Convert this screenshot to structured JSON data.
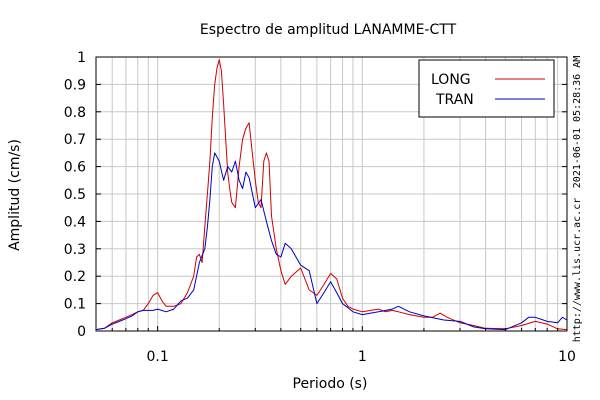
{
  "chart_data": {
    "type": "line",
    "title": "Espectro de amplitud LANAMME-CTT",
    "xlabel": "Periodo (s)",
    "ylabel": "Amplitud (cm/s)",
    "x_scale": "log",
    "xlim": [
      0.05,
      10
    ],
    "ylim": [
      0,
      1
    ],
    "x_ticks": [
      0.1,
      1,
      10
    ],
    "x_tick_labels": [
      "0.1",
      "1",
      "10"
    ],
    "y_ticks": [
      0,
      0.1,
      0.2,
      0.3,
      0.4,
      0.5,
      0.6,
      0.7,
      0.8,
      0.9,
      1
    ],
    "y_tick_labels": [
      "0",
      "0.1",
      "0.2",
      "0.3",
      "0.4",
      "0.5",
      "0.6",
      "0.7",
      "0.8",
      "0.9",
      "1"
    ],
    "grid": true,
    "legend_position": "top-right",
    "side_annotations": [
      "2021-06-01 05:28:36 AM",
      "http://www.lis.ucr.ac.cr"
    ],
    "series": [
      {
        "name": "LONG",
        "color": "#d00000",
        "points": [
          [
            0.05,
            0.005
          ],
          [
            0.055,
            0.01
          ],
          [
            0.06,
            0.03
          ],
          [
            0.065,
            0.04
          ],
          [
            0.07,
            0.05
          ],
          [
            0.075,
            0.06
          ],
          [
            0.08,
            0.07
          ],
          [
            0.085,
            0.075
          ],
          [
            0.09,
            0.1
          ],
          [
            0.095,
            0.13
          ],
          [
            0.1,
            0.14
          ],
          [
            0.105,
            0.11
          ],
          [
            0.11,
            0.09
          ],
          [
            0.12,
            0.09
          ],
          [
            0.13,
            0.1
          ],
          [
            0.14,
            0.14
          ],
          [
            0.15,
            0.2
          ],
          [
            0.155,
            0.27
          ],
          [
            0.16,
            0.28
          ],
          [
            0.165,
            0.25
          ],
          [
            0.17,
            0.38
          ],
          [
            0.175,
            0.5
          ],
          [
            0.18,
            0.62
          ],
          [
            0.185,
            0.78
          ],
          [
            0.19,
            0.9
          ],
          [
            0.195,
            0.96
          ],
          [
            0.2,
            0.99
          ],
          [
            0.205,
            0.95
          ],
          [
            0.21,
            0.83
          ],
          [
            0.215,
            0.7
          ],
          [
            0.22,
            0.58
          ],
          [
            0.225,
            0.52
          ],
          [
            0.23,
            0.47
          ],
          [
            0.24,
            0.45
          ],
          [
            0.25,
            0.6
          ],
          [
            0.26,
            0.7
          ],
          [
            0.27,
            0.74
          ],
          [
            0.28,
            0.76
          ],
          [
            0.29,
            0.65
          ],
          [
            0.3,
            0.55
          ],
          [
            0.31,
            0.47
          ],
          [
            0.32,
            0.45
          ],
          [
            0.33,
            0.62
          ],
          [
            0.34,
            0.65
          ],
          [
            0.35,
            0.62
          ],
          [
            0.36,
            0.42
          ],
          [
            0.38,
            0.3
          ],
          [
            0.4,
            0.22
          ],
          [
            0.42,
            0.17
          ],
          [
            0.45,
            0.2
          ],
          [
            0.5,
            0.23
          ],
          [
            0.55,
            0.15
          ],
          [
            0.6,
            0.13
          ],
          [
            0.65,
            0.17
          ],
          [
            0.7,
            0.21
          ],
          [
            0.75,
            0.19
          ],
          [
            0.8,
            0.12
          ],
          [
            0.85,
            0.09
          ],
          [
            0.9,
            0.08
          ],
          [
            1.0,
            0.07
          ],
          [
            1.1,
            0.075
          ],
          [
            1.2,
            0.08
          ],
          [
            1.3,
            0.07
          ],
          [
            1.4,
            0.075
          ],
          [
            1.5,
            0.07
          ],
          [
            1.7,
            0.06
          ],
          [
            2.0,
            0.05
          ],
          [
            2.2,
            0.05
          ],
          [
            2.4,
            0.065
          ],
          [
            2.6,
            0.05
          ],
          [
            3.0,
            0.03
          ],
          [
            3.5,
            0.02
          ],
          [
            4.0,
            0.01
          ],
          [
            5.0,
            0.008
          ],
          [
            6.0,
            0.02
          ],
          [
            7.0,
            0.035
          ],
          [
            8.0,
            0.025
          ],
          [
            9.0,
            0.008
          ],
          [
            10.0,
            0.005
          ]
        ]
      },
      {
        "name": "TRAN",
        "color": "#0000c0",
        "points": [
          [
            0.05,
            0.005
          ],
          [
            0.055,
            0.01
          ],
          [
            0.06,
            0.025
          ],
          [
            0.065,
            0.035
          ],
          [
            0.07,
            0.045
          ],
          [
            0.075,
            0.055
          ],
          [
            0.08,
            0.07
          ],
          [
            0.085,
            0.075
          ],
          [
            0.09,
            0.075
          ],
          [
            0.095,
            0.075
          ],
          [
            0.1,
            0.08
          ],
          [
            0.11,
            0.07
          ],
          [
            0.12,
            0.08
          ],
          [
            0.13,
            0.11
          ],
          [
            0.14,
            0.12
          ],
          [
            0.15,
            0.15
          ],
          [
            0.16,
            0.25
          ],
          [
            0.17,
            0.3
          ],
          [
            0.175,
            0.38
          ],
          [
            0.18,
            0.48
          ],
          [
            0.185,
            0.6
          ],
          [
            0.19,
            0.65
          ],
          [
            0.2,
            0.62
          ],
          [
            0.21,
            0.55
          ],
          [
            0.22,
            0.6
          ],
          [
            0.23,
            0.58
          ],
          [
            0.24,
            0.62
          ],
          [
            0.25,
            0.55
          ],
          [
            0.26,
            0.52
          ],
          [
            0.27,
            0.58
          ],
          [
            0.28,
            0.56
          ],
          [
            0.3,
            0.45
          ],
          [
            0.32,
            0.48
          ],
          [
            0.34,
            0.4
          ],
          [
            0.36,
            0.33
          ],
          [
            0.38,
            0.28
          ],
          [
            0.4,
            0.27
          ],
          [
            0.42,
            0.32
          ],
          [
            0.45,
            0.3
          ],
          [
            0.5,
            0.24
          ],
          [
            0.55,
            0.22
          ],
          [
            0.6,
            0.1
          ],
          [
            0.65,
            0.14
          ],
          [
            0.7,
            0.18
          ],
          [
            0.75,
            0.14
          ],
          [
            0.8,
            0.1
          ],
          [
            0.85,
            0.085
          ],
          [
            0.9,
            0.07
          ],
          [
            1.0,
            0.06
          ],
          [
            1.2,
            0.07
          ],
          [
            1.4,
            0.08
          ],
          [
            1.5,
            0.09
          ],
          [
            1.7,
            0.07
          ],
          [
            2.0,
            0.055
          ],
          [
            2.5,
            0.04
          ],
          [
            3.0,
            0.035
          ],
          [
            3.5,
            0.015
          ],
          [
            4.0,
            0.008
          ],
          [
            5.0,
            0.005
          ],
          [
            6.0,
            0.03
          ],
          [
            6.5,
            0.05
          ],
          [
            7.0,
            0.05
          ],
          [
            8.0,
            0.035
          ],
          [
            9.0,
            0.03
          ],
          [
            9.5,
            0.05
          ],
          [
            10.0,
            0.04
          ]
        ]
      }
    ]
  }
}
